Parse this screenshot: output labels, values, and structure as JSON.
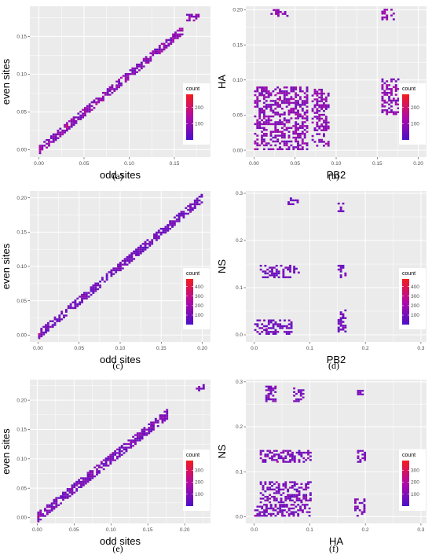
{
  "figure": {
    "background": "#ffffff",
    "panel_background": "#ebebeb",
    "grid_color": "#ffffff"
  },
  "legend": {
    "title": "count",
    "colors": [
      "#4b0fc8",
      "#b00aa6",
      "#f51c1c"
    ]
  },
  "chart_data": [
    {
      "id": "a",
      "type": "heatmap",
      "panel_label": "(a)",
      "xlabel": "odd sites",
      "ylabel": "even sites",
      "xlim": [
        -0.01,
        0.19
      ],
      "ylim": [
        -0.01,
        0.19
      ],
      "xticks": [
        0,
        0.05,
        0.1,
        0.15
      ],
      "xtick_labels": [
        "0.00",
        "0.05",
        "0.10",
        "0.15"
      ],
      "yticks": [
        0,
        0.05,
        0.1,
        0.15
      ],
      "ytick_labels": [
        "0.00",
        "0.05",
        "0.10",
        "0.15"
      ],
      "legend_ticks": [
        100,
        200
      ],
      "legend_range": [
        1,
        280
      ],
      "regions": [
        {
          "shape": "diag",
          "x": [
            0,
            0.16
          ],
          "y": [
            0,
            0.16
          ],
          "halfwidth": 0.006
        },
        {
          "shape": "rect",
          "x": [
            0.163,
            0.178
          ],
          "y": [
            0.17,
            0.18
          ]
        }
      ],
      "hotspots": [
        {
          "x": 0.0,
          "y": 0.0,
          "count": 150
        },
        {
          "x": 0.03,
          "y": 0.03,
          "count": 230
        }
      ]
    },
    {
      "id": "b",
      "type": "heatmap",
      "panel_label": "(b)",
      "xlabel": "PB2",
      "ylabel": "HA",
      "xlim": [
        -0.01,
        0.21
      ],
      "ylim": [
        -0.01,
        0.205
      ],
      "xticks": [
        0,
        0.05,
        0.1,
        0.15,
        0.2
      ],
      "xtick_labels": [
        "0.00",
        "0.05",
        "0.10",
        "0.15",
        "0.20"
      ],
      "yticks": [
        0,
        0.05,
        0.1,
        0.15,
        0.2
      ],
      "ytick_labels": [
        "0.00",
        "0.05",
        "0.10",
        "0.15",
        "0.20"
      ],
      "legend_ticks": [
        100,
        200
      ],
      "legend_range": [
        1,
        280
      ],
      "regions": [
        {
          "shape": "rect",
          "x": [
            0.0,
            0.065
          ],
          "y": [
            0.0,
            0.09
          ]
        },
        {
          "shape": "rect",
          "x": [
            0.07,
            0.09
          ],
          "y": [
            0.005,
            0.085
          ]
        },
        {
          "shape": "rect",
          "x": [
            0.155,
            0.175
          ],
          "y": [
            0.05,
            0.1
          ]
        },
        {
          "shape": "rect",
          "x": [
            0.02,
            0.04
          ],
          "y": [
            0.19,
            0.2
          ]
        },
        {
          "shape": "rect",
          "x": [
            0.155,
            0.17
          ],
          "y": [
            0.185,
            0.2
          ]
        }
      ],
      "hotspots": [
        {
          "x": 0.0,
          "y": 0.0,
          "count": 160
        },
        {
          "x": 0.03,
          "y": 0.07,
          "count": 210
        }
      ]
    },
    {
      "id": "c",
      "type": "heatmap",
      "panel_label": "(c)",
      "xlabel": "odd sites",
      "ylabel": "even sites",
      "xlim": [
        -0.01,
        0.21
      ],
      "ylim": [
        -0.01,
        0.21
      ],
      "xticks": [
        0,
        0.05,
        0.1,
        0.15,
        0.2
      ],
      "xtick_labels": [
        "0.00",
        "0.05",
        "0.10",
        "0.15",
        "0.20"
      ],
      "yticks": [
        0,
        0.05,
        0.1,
        0.15,
        0.2
      ],
      "ytick_labels": [
        "0.00",
        "0.05",
        "0.10",
        "0.15",
        "0.20"
      ],
      "legend_ticks": [
        100,
        200,
        300,
        400
      ],
      "legend_range": [
        1,
        480
      ],
      "regions": [
        {
          "shape": "diag",
          "x": [
            0,
            0.2
          ],
          "y": [
            0,
            0.2
          ],
          "halfwidth": 0.006
        }
      ],
      "hotspots": [
        {
          "x": 0.0,
          "y": 0.0,
          "count": 300
        },
        {
          "x": 0.055,
          "y": 0.055,
          "count": 200
        }
      ]
    },
    {
      "id": "d",
      "type": "heatmap",
      "panel_label": "(d)",
      "xlabel": "PB2",
      "ylabel": "NS",
      "xlim": [
        -0.015,
        0.31
      ],
      "ylim": [
        -0.015,
        0.305
      ],
      "xticks": [
        0,
        0.1,
        0.2,
        0.3
      ],
      "xtick_labels": [
        "0.0",
        "0.1",
        "0.2",
        "0.3"
      ],
      "yticks": [
        0,
        0.1,
        0.2,
        0.3
      ],
      "ytick_labels": [
        "0.0",
        "0.1",
        "0.2",
        "0.3"
      ],
      "legend_ticks": [
        100,
        200,
        300,
        400
      ],
      "legend_range": [
        1,
        480
      ],
      "regions": [
        {
          "shape": "rect",
          "x": [
            0.0,
            0.065
          ],
          "y": [
            0.0,
            0.03
          ]
        },
        {
          "shape": "rect",
          "x": [
            0.01,
            0.065
          ],
          "y": [
            0.12,
            0.145
          ]
        },
        {
          "shape": "rect",
          "x": [
            0.07,
            0.085
          ],
          "y": [
            0.13,
            0.145
          ]
        },
        {
          "shape": "rect",
          "x": [
            0.15,
            0.165
          ],
          "y": [
            0.12,
            0.145
          ]
        },
        {
          "shape": "rect",
          "x": [
            0.15,
            0.165
          ],
          "y": [
            0.005,
            0.05
          ]
        },
        {
          "shape": "rect",
          "x": [
            0.06,
            0.08
          ],
          "y": [
            0.275,
            0.29
          ]
        },
        {
          "shape": "rect",
          "x": [
            0.15,
            0.165
          ],
          "y": [
            0.26,
            0.28
          ]
        }
      ],
      "hotspots": [
        {
          "x": 0.02,
          "y": 0.01,
          "count": 220
        }
      ]
    },
    {
      "id": "e",
      "type": "heatmap",
      "panel_label": "(e)",
      "xlabel": "odd sites",
      "ylabel": "even sites",
      "xlim": [
        -0.01,
        0.235
      ],
      "ylim": [
        -0.01,
        0.235
      ],
      "xticks": [
        0,
        0.05,
        0.1,
        0.15,
        0.2
      ],
      "xtick_labels": [
        "0.00",
        "0.05",
        "0.10",
        "0.15",
        "0.20"
      ],
      "yticks": [
        0,
        0.05,
        0.1,
        0.15,
        0.2
      ],
      "ytick_labels": [
        "0.00",
        "0.05",
        "0.10",
        "0.15",
        "0.20"
      ],
      "legend_ticks": [
        100,
        200,
        300
      ],
      "legend_range": [
        1,
        380
      ],
      "regions": [
        {
          "shape": "diag",
          "x": [
            0,
            0.175
          ],
          "y": [
            0,
            0.175
          ],
          "halfwidth": 0.008
        },
        {
          "shape": "rect",
          "x": [
            0.215,
            0.225
          ],
          "y": [
            0.215,
            0.225
          ]
        }
      ],
      "hotspots": [
        {
          "x": 0.0,
          "y": 0.0,
          "count": 250
        },
        {
          "x": 0.07,
          "y": 0.07,
          "count": 200
        }
      ]
    },
    {
      "id": "f",
      "type": "heatmap",
      "panel_label": "(f)",
      "xlabel": "HA",
      "ylabel": "NS",
      "xlim": [
        -0.015,
        0.31
      ],
      "ylim": [
        -0.015,
        0.305
      ],
      "xticks": [
        0,
        0.1,
        0.2,
        0.3
      ],
      "xtick_labels": [
        "0.0",
        "0.1",
        "0.2",
        "0.3"
      ],
      "yticks": [
        0,
        0.1,
        0.2,
        0.3
      ],
      "ytick_labels": [
        "0.0",
        "0.1",
        "0.2",
        "0.3"
      ],
      "legend_ticks": [
        100,
        200,
        300
      ],
      "legend_range": [
        1,
        380
      ],
      "regions": [
        {
          "shape": "rect",
          "x": [
            0.0,
            0.1
          ],
          "y": [
            0.0,
            0.025
          ]
        },
        {
          "shape": "rect",
          "x": [
            0.01,
            0.1
          ],
          "y": [
            0.03,
            0.075
          ]
        },
        {
          "shape": "rect",
          "x": [
            0.01,
            0.1
          ],
          "y": [
            0.12,
            0.145
          ]
        },
        {
          "shape": "rect",
          "x": [
            0.185,
            0.2
          ],
          "y": [
            0.12,
            0.15
          ]
        },
        {
          "shape": "rect",
          "x": [
            0.18,
            0.2
          ],
          "y": [
            0.0,
            0.04
          ]
        },
        {
          "shape": "rect",
          "x": [
            0.02,
            0.04
          ],
          "y": [
            0.255,
            0.29
          ]
        },
        {
          "shape": "rect",
          "x": [
            0.07,
            0.09
          ],
          "y": [
            0.255,
            0.285
          ]
        },
        {
          "shape": "rect",
          "x": [
            0.185,
            0.195
          ],
          "y": [
            0.27,
            0.285
          ]
        }
      ],
      "hotspots": [
        {
          "x": 0.0,
          "y": 0.0,
          "count": 200
        },
        {
          "x": 0.04,
          "y": 0.12,
          "count": 180
        }
      ]
    }
  ]
}
